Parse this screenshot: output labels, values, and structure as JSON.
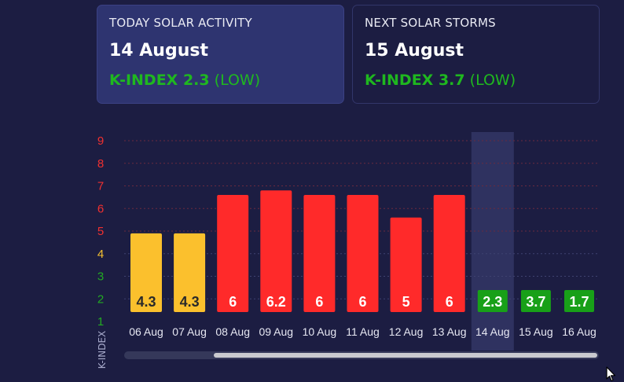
{
  "cards": {
    "today": {
      "title": "TODAY SOLAR ACTIVITY",
      "date": "14 August",
      "kindex_label": "K-INDEX 2.3",
      "level": "(LOW)"
    },
    "next": {
      "title": "NEXT SOLAR STORMS",
      "date": "15 August",
      "kindex_label": "K-INDEX 3.7",
      "level": "(LOW)"
    }
  },
  "chart_data": {
    "type": "bar",
    "categories": [
      "06 Aug",
      "07 Aug",
      "08 Aug",
      "09 Aug",
      "10 Aug",
      "11 Aug",
      "12 Aug",
      "13 Aug",
      "14 Aug",
      "15 Aug",
      "16 Aug"
    ],
    "values": [
      4.3,
      4.3,
      6,
      6.2,
      6,
      6,
      5,
      6,
      2.3,
      3.7,
      1.7
    ],
    "value_labels": [
      "4.3",
      "4.3",
      "6",
      "6.2",
      "6",
      "6",
      "5",
      "6",
      "2.3",
      "3.7",
      "1.7"
    ],
    "ylabel": "K-INDEX",
    "ylim": [
      1,
      9
    ],
    "yticks": [
      {
        "label": "1",
        "value": 1,
        "color": "#22aa22"
      },
      {
        "label": "2",
        "value": 2,
        "color": "#22aa22"
      },
      {
        "label": "3",
        "value": 3,
        "color": "#22aa22"
      },
      {
        "label": "4",
        "value": 4,
        "color": "#f4c030"
      },
      {
        "label": "5",
        "value": 5,
        "color": "#f03030"
      },
      {
        "label": "6",
        "value": 6,
        "color": "#f03030"
      },
      {
        "label": "7",
        "value": 7,
        "color": "#f03030"
      },
      {
        "label": "8",
        "value": 8,
        "color": "#f03030"
      },
      {
        "label": "9",
        "value": 9,
        "color": "#f03030"
      }
    ],
    "highlight_category": "14 Aug",
    "grid": true,
    "colors": {
      "low": "#18a018",
      "moderate": "#fbc02d",
      "high": "#ff2a2a"
    }
  }
}
